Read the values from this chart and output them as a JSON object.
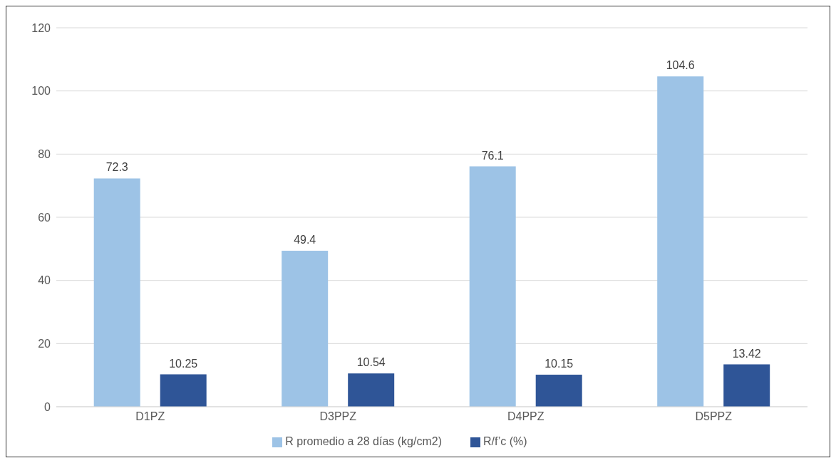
{
  "chart_data": {
    "type": "bar",
    "categories": [
      "D1PZ",
      "D3PPZ",
      "D4PPZ",
      "D5PPZ"
    ],
    "series": [
      {
        "name": "R promedio a 28 días (kg/cm2)",
        "color": "#9dc3e6",
        "values": [
          72.3,
          49.4,
          76.1,
          104.6
        ]
      },
      {
        "name": "R/f’c (%)",
        "color": "#2f5597",
        "values": [
          10.25,
          10.54,
          10.15,
          13.42
        ]
      }
    ],
    "ylim": [
      0,
      120
    ],
    "yticks": [
      0,
      20,
      40,
      60,
      80,
      100,
      120
    ],
    "grid": "y",
    "legend": "bottom",
    "data_labels": true
  }
}
